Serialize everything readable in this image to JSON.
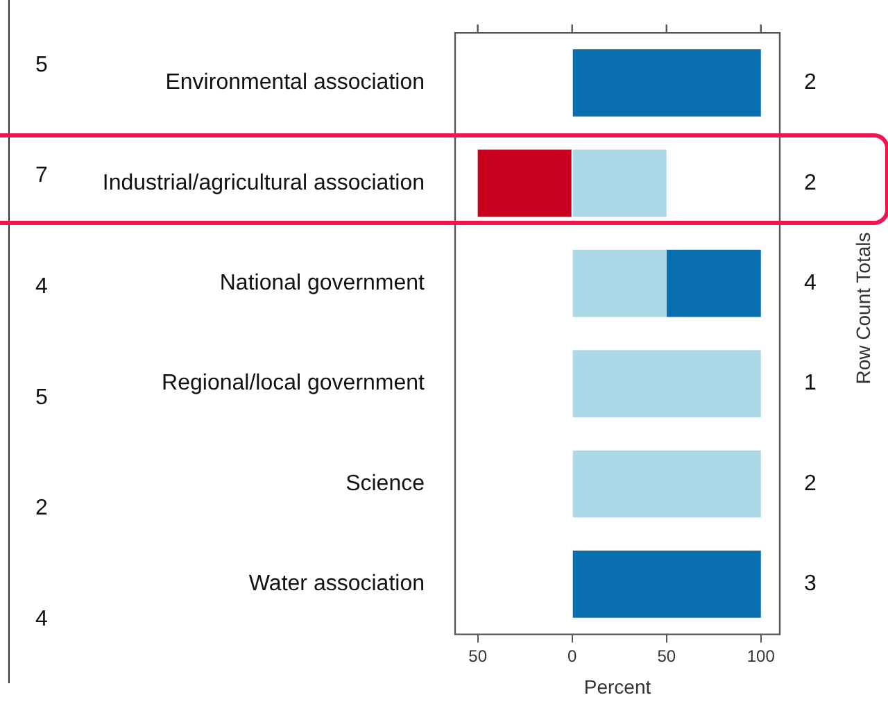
{
  "chart_data": {
    "type": "bar",
    "orientation": "horizontal",
    "stacked": true,
    "categories": [
      "Environmental association",
      "Industrial/agricultural association",
      "National government",
      "Regional/local government",
      "Science",
      "Water association"
    ],
    "series": [
      {
        "color": "#c8001e",
        "values": [
          null,
          -50,
          null,
          null,
          null,
          null
        ]
      },
      {
        "color": "#acd8e8",
        "values": [
          null,
          50,
          50,
          100,
          100,
          null
        ]
      },
      {
        "color": "#0a6fae",
        "values": [
          100,
          null,
          50,
          null,
          null,
          100
        ]
      }
    ],
    "xlim": [
      -62,
      110
    ],
    "xticks": [
      {
        "value": -50,
        "label": "50"
      },
      0,
      50,
      100
    ],
    "xlabel": "Percent",
    "y2label": "Row Count Totals",
    "annotations": [
      "5",
      "7",
      "4",
      "5",
      "2",
      "4",
      "2",
      "2",
      "4",
      "1",
      "2",
      "3"
    ],
    "grid": false,
    "legend": false
  }
}
